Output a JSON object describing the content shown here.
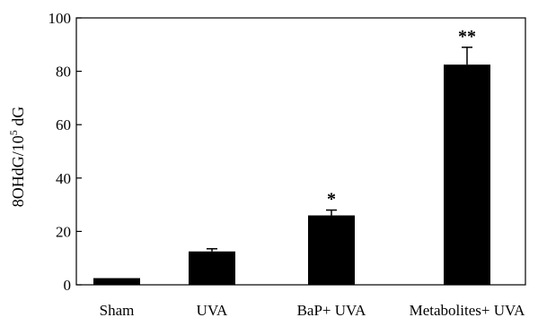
{
  "chart_data": {
    "type": "bar",
    "ylabel_main": "8OHdG/10",
    "ylabel_sup": "5",
    "ylabel_tail": " dG",
    "categories": [
      "Sham",
      "UVA",
      "BaP+ UVA",
      "Metabolites+ UVA"
    ],
    "values": [
      2.5,
      12.5,
      26,
      82.5
    ],
    "errors": [
      0,
      1,
      2,
      6.5
    ],
    "significance": [
      "",
      "",
      "*",
      "**"
    ],
    "ylim": [
      0,
      100
    ],
    "yticks": [
      0,
      20,
      40,
      60,
      80,
      100
    ],
    "grid": false,
    "legend": false,
    "bar_color": "#000000",
    "axis_color": "#000000"
  }
}
